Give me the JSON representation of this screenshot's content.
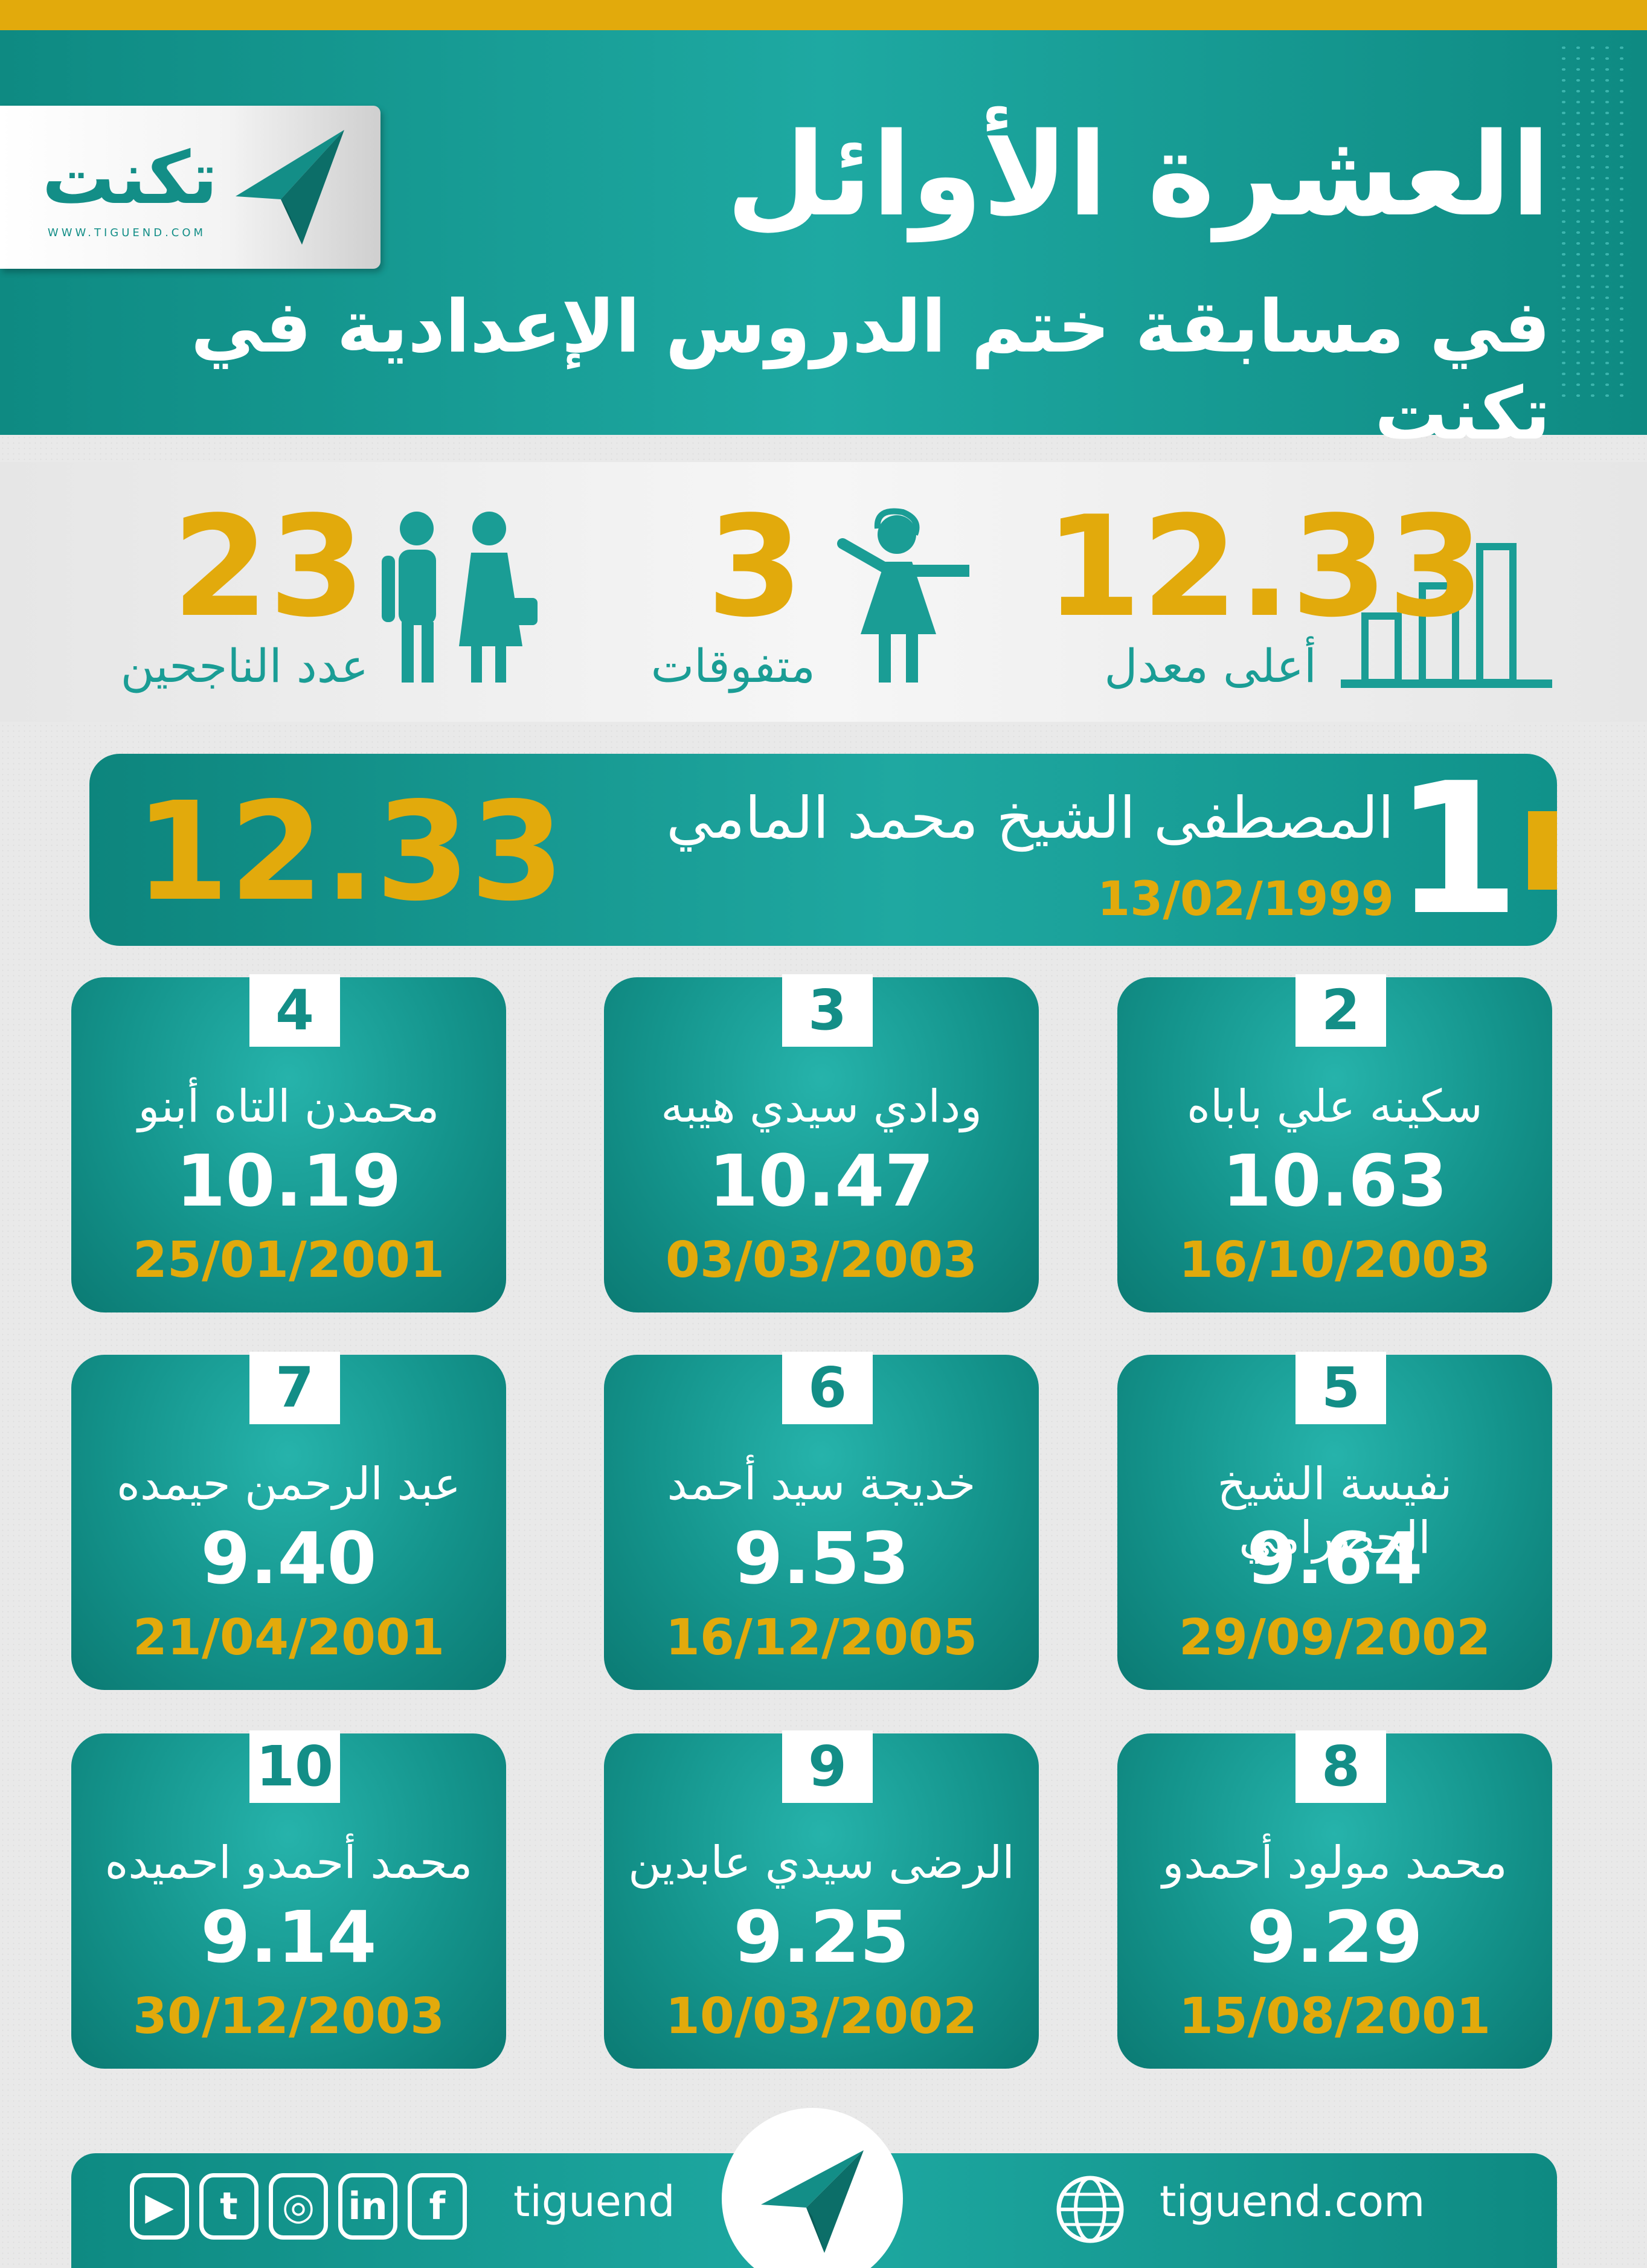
{
  "colors": {
    "teal": "#1a9d95",
    "gold": "#e2aa0c",
    "white": "#ffffff"
  },
  "header": {
    "title": "العشرة الأوائل",
    "subtitle": "في مسابقة ختم الدروس الإعدادية في تكنت"
  },
  "logo": {
    "word": "تكنت",
    "url": "WWW.TIGUEND.COM",
    "icon": "paper-plane-icon"
  },
  "stats": {
    "top_average": {
      "value": "12.33",
      "label": "أعلى معدل",
      "icon": "bar-chart-icon"
    },
    "excellent": {
      "value": "3",
      "label": "متفوقات",
      "icon": "girl-student-icon"
    },
    "passed": {
      "value": "23",
      "label": "عدد الناجحين",
      "icon": "students-icon"
    }
  },
  "first": {
    "rank": "1",
    "name": "المصطفى الشيخ محمد المامي",
    "date": "13/02/1999",
    "score": "12.33"
  },
  "cards": [
    {
      "rank": "2",
      "name": "سكينه علي باباه",
      "score": "10.63",
      "date": "16/10/2003"
    },
    {
      "rank": "3",
      "name": "ودادي سيدي هيبه",
      "score": "10.47",
      "date": "03/03/2003"
    },
    {
      "rank": "4",
      "name": "محمدن التاه أبنو",
      "score": "10.19",
      "date": "25/01/2001"
    },
    {
      "rank": "5",
      "name": "نفيسة الشيخ الحضرامي",
      "score": "9.64",
      "date": "29/09/2002"
    },
    {
      "rank": "6",
      "name": "خديجة سيد أحمد",
      "score": "9.53",
      "date": "16/12/2005"
    },
    {
      "rank": "7",
      "name": "عبد الرحمن حيمده",
      "score": "9.40",
      "date": "21/04/2001"
    },
    {
      "rank": "8",
      "name": "محمد مولود أحمدو",
      "score": "9.29",
      "date": "15/08/2001"
    },
    {
      "rank": "9",
      "name": "الرضى سيدي عابدين",
      "score": "9.25",
      "date": "10/03/2002"
    },
    {
      "rank": "10",
      "name": "محمد أحمدو احميده",
      "score": "9.14",
      "date": "30/12/2003"
    }
  ],
  "footer": {
    "handle": "tiguend",
    "website": "tiguend.com",
    "social_icons": [
      "youtube-icon",
      "twitter-icon",
      "instagram-icon",
      "linkedin-icon",
      "facebook-icon"
    ]
  }
}
